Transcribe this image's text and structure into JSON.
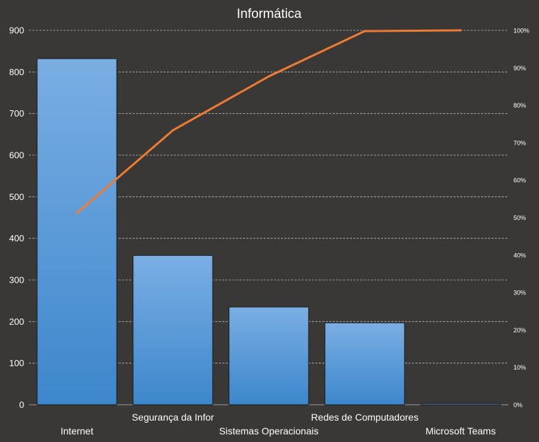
{
  "chart_data": {
    "type": "bar",
    "title": "Informática",
    "categories": [
      "Internet",
      "Segurança da Infor",
      "Sistemas Operacionais",
      "Redes de Computadores",
      "Microsoft Teams"
    ],
    "series": [
      {
        "type": "bar",
        "values": [
          832,
          359,
          235,
          197,
          3
        ]
      },
      {
        "type": "line",
        "axis": "secondary",
        "values": [
          51.2,
          73.3,
          87.7,
          99.8,
          100
        ]
      }
    ],
    "ylim": [
      0,
      900
    ],
    "yticks": [
      0,
      100,
      200,
      300,
      400,
      500,
      600,
      700,
      800,
      900
    ],
    "y2lim": [
      0,
      100
    ],
    "y2ticks": [
      "0%",
      "10%",
      "20%",
      "30%",
      "40%",
      "50%",
      "60%",
      "70%",
      "80%",
      "90%",
      "100%"
    ],
    "grid": true,
    "legend": "none",
    "colors": {
      "bar_top": "#7aaee3",
      "bar_bottom": "#3d87cc",
      "bar_stroke": "#1a1a1a",
      "line": "#ef7d31",
      "grid": "#bdbdbd",
      "background": "#3a3836",
      "text": "#ffffff"
    }
  }
}
